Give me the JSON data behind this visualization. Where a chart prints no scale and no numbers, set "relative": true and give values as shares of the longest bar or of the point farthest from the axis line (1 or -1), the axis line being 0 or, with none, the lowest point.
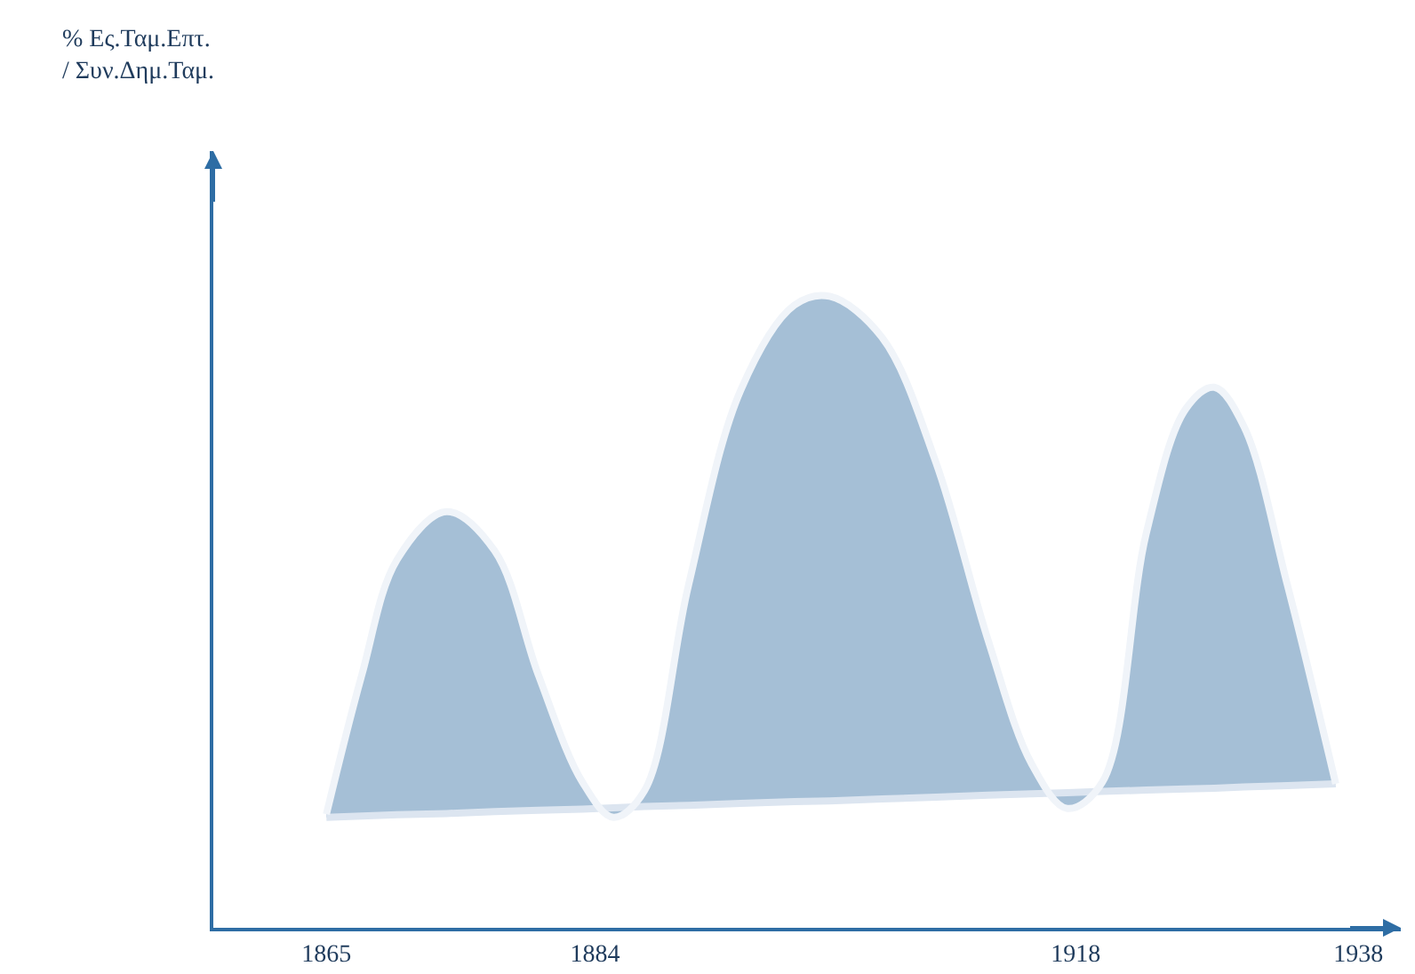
{
  "chart_data": {
    "type": "area",
    "relative": true,
    "annotations": [
      "% Ες.Ταμ.Επτ.\n/ Συν.Δημ.Ταμ."
    ],
    "xlim": [
      1857,
      1941
    ],
    "xticks": [
      1865,
      1884,
      1918,
      1938
    ],
    "grid": false,
    "legend": false,
    "marker": "none",
    "series": [
      {
        "type": "line",
        "color": "#dce5f0",
        "x": [
          1865,
          1867.5,
          1870.0,
          1873.5,
          1876.9,
          1880.0,
          1883.1,
          1885.3,
          1887.5,
          1890.6,
          1894.3,
          1898.1,
          1900.6,
          1904.3,
          1908.1,
          1911.8,
          1914.9,
          1917.4,
          1919.9,
          1923.0,
          1925.8,
          1927.8,
          1929.9,
          1933.0,
          1936.4
        ],
        "values": [
          0.175,
          0.177,
          0.179,
          0.181,
          0.184,
          0.186,
          0.188,
          0.19,
          0.192,
          0.194,
          0.197,
          0.2,
          0.201,
          0.204,
          0.207,
          0.21,
          0.212,
          0.214,
          0.216,
          0.218,
          0.22,
          0.221,
          0.223,
          0.225,
          0.228
        ]
      },
      {
        "color": "#a5bfd6",
        "x": [
          1865,
          1867.5,
          1870.0,
          1873.5,
          1876.9,
          1880.0,
          1883.1,
          1885.3,
          1887.5,
          1890.6,
          1894.3,
          1898.1,
          1900.6,
          1904.3,
          1908.1,
          1911.8,
          1914.9,
          1917.4,
          1919.9,
          1923.0,
          1925.8,
          1927.8,
          1929.9,
          1933.0,
          1936.4
        ],
        "values": [
          0.18,
          0.4,
          0.583,
          0.659,
          0.597,
          0.4,
          0.231,
          0.175,
          0.217,
          0.541,
          0.851,
          0.986,
          1.0,
          0.935,
          0.738,
          0.456,
          0.259,
          0.189,
          0.231,
          0.625,
          0.822,
          0.856,
          0.794,
          0.541,
          0.228
        ]
      }
    ]
  }
}
